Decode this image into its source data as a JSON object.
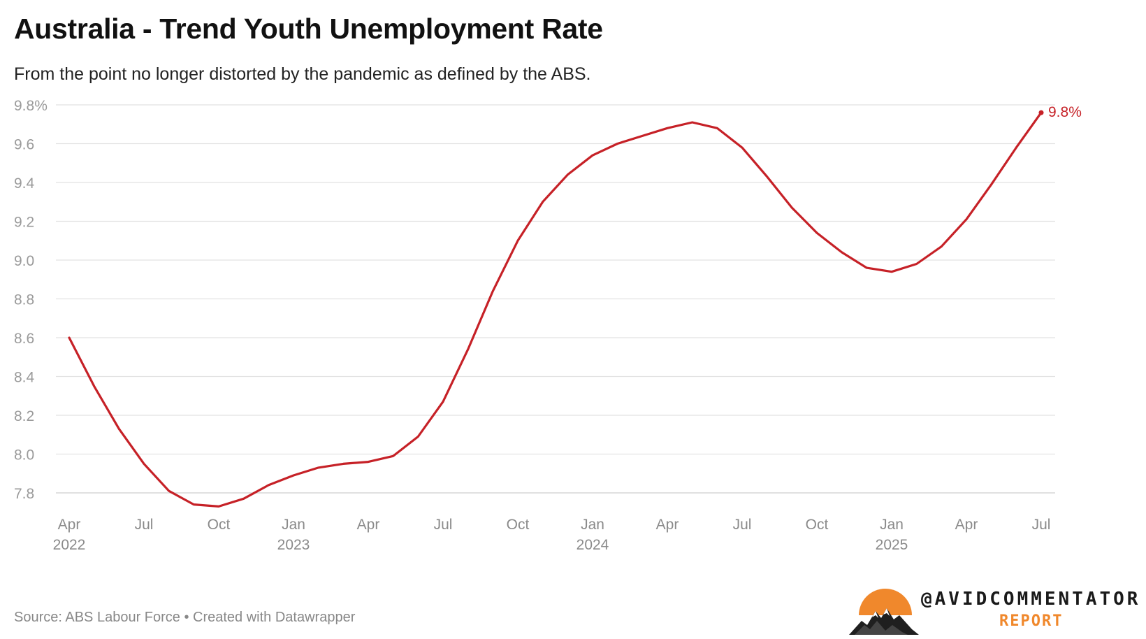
{
  "header": {
    "title": "Australia - Trend Youth Unemployment Rate",
    "subtitle": "From the point no longer distorted by the pandemic as defined by the ABS."
  },
  "footer": {
    "source": "Source: ABS Labour Force • Created with Datawrapper"
  },
  "brand": {
    "name": "@AVIDCOMMENTATOR",
    "sub": "REPORT",
    "sun_color": "#f0882c"
  },
  "chart_data": {
    "type": "line",
    "title": "Australia - Trend Youth Unemployment Rate",
    "subtitle": "From the point no longer distorted by the pandemic as defined by the ABS.",
    "xlabel": "",
    "ylabel": "",
    "ylim": [
      7.7,
      9.8
    ],
    "grid": true,
    "line_color": "#c62127",
    "end_label": "9.8%",
    "y_ticks": [
      {
        "value": 9.8,
        "label": "9.8%"
      },
      {
        "value": 9.6,
        "label": "9.6"
      },
      {
        "value": 9.4,
        "label": "9.4"
      },
      {
        "value": 9.2,
        "label": "9.2"
      },
      {
        "value": 9.0,
        "label": "9.0"
      },
      {
        "value": 8.8,
        "label": "8.8"
      },
      {
        "value": 8.6,
        "label": "8.6"
      },
      {
        "value": 8.4,
        "label": "8.4"
      },
      {
        "value": 8.2,
        "label": "8.2"
      },
      {
        "value": 8.0,
        "label": "8.0"
      },
      {
        "value": 7.8,
        "label": "7.8"
      }
    ],
    "x_ticks": [
      {
        "date": "2022-04",
        "label": "Apr",
        "year": "2022"
      },
      {
        "date": "2022-07",
        "label": "Jul",
        "year": ""
      },
      {
        "date": "2022-10",
        "label": "Oct",
        "year": ""
      },
      {
        "date": "2023-01",
        "label": "Jan",
        "year": "2023"
      },
      {
        "date": "2023-04",
        "label": "Apr",
        "year": ""
      },
      {
        "date": "2023-07",
        "label": "Jul",
        "year": ""
      },
      {
        "date": "2023-10",
        "label": "Oct",
        "year": ""
      },
      {
        "date": "2024-01",
        "label": "Jan",
        "year": "2024"
      },
      {
        "date": "2024-04",
        "label": "Apr",
        "year": ""
      },
      {
        "date": "2024-07",
        "label": "Jul",
        "year": ""
      },
      {
        "date": "2024-10",
        "label": "Oct",
        "year": ""
      },
      {
        "date": "2025-01",
        "label": "Jan",
        "year": "2025"
      },
      {
        "date": "2025-04",
        "label": "Apr",
        "year": ""
      },
      {
        "date": "2025-07",
        "label": "Jul",
        "year": ""
      }
    ],
    "series": [
      {
        "x": [
          "2022-04",
          "2022-05",
          "2022-06",
          "2022-07",
          "2022-08",
          "2022-09",
          "2022-10",
          "2022-11",
          "2022-12",
          "2023-01",
          "2023-02",
          "2023-03",
          "2023-04",
          "2023-05",
          "2023-06",
          "2023-07",
          "2023-08",
          "2023-09",
          "2023-10",
          "2023-11",
          "2023-12",
          "2024-01",
          "2024-02",
          "2024-03",
          "2024-04",
          "2024-05",
          "2024-06",
          "2024-07",
          "2024-08",
          "2024-09",
          "2024-10",
          "2024-11",
          "2024-12",
          "2025-01",
          "2025-02",
          "2025-03",
          "2025-04",
          "2025-05",
          "2025-06",
          "2025-07"
        ],
        "values": [
          8.6,
          8.35,
          8.13,
          7.95,
          7.81,
          7.74,
          7.73,
          7.77,
          7.84,
          7.89,
          7.93,
          7.95,
          7.96,
          7.99,
          8.09,
          8.27,
          8.54,
          8.84,
          9.1,
          9.3,
          9.44,
          9.54,
          9.6,
          9.64,
          9.68,
          9.71,
          9.68,
          9.58,
          9.43,
          9.27,
          9.14,
          9.04,
          8.96,
          8.94,
          8.98,
          9.07,
          9.21,
          9.39,
          9.58,
          9.76
        ]
      }
    ]
  }
}
